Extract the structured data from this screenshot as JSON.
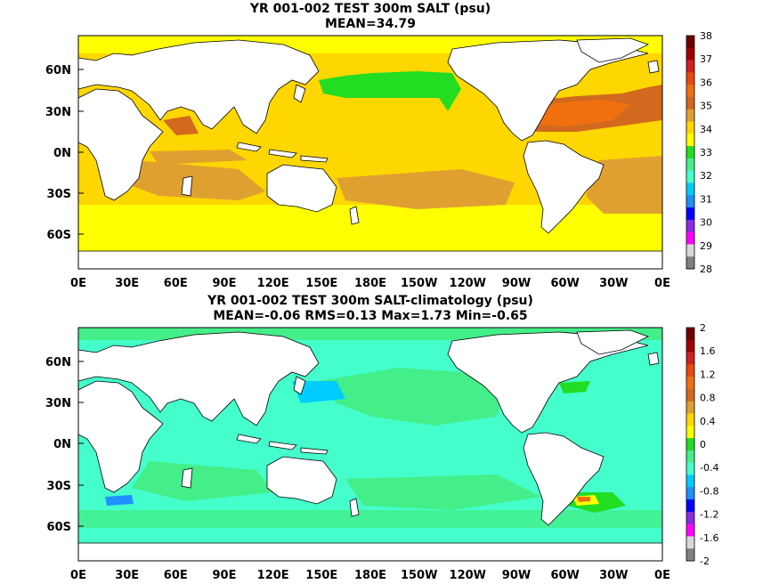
{
  "panels": [
    {
      "title": "YR 001-002 TEST 300m SALT (psu)",
      "subtitle": "MEAN=34.79",
      "colorbar_labels": [
        "38",
        "37",
        "36",
        "35",
        "34",
        "33",
        "32",
        "31",
        "30",
        "29",
        "28"
      ]
    },
    {
      "title": "YR 001-002 TEST 300m SALT-climatology (psu)",
      "subtitle": "MEAN=-0.06   RMS=0.13   Max=1.73   Min=-0.65",
      "colorbar_labels": [
        "2",
        "1.6",
        "1.2",
        "0.8",
        "0.4",
        "0",
        "-0.4",
        "-0.8",
        "-1.2",
        "-1.6",
        "-2"
      ]
    }
  ],
  "lat_labels": [
    "60N",
    "30N",
    "0N",
    "30S",
    "60S"
  ],
  "lon_labels": [
    "0E",
    "30E",
    "60E",
    "90E",
    "120E",
    "150E",
    "180E",
    "150W",
    "120W",
    "90W",
    "60W",
    "30W",
    "0E"
  ],
  "colors": {
    "top_scale": [
      "#6e0000",
      "#a00000",
      "#d02020",
      "#e84a10",
      "#f07010",
      "#d2691e",
      "#e0a030",
      "#ffd700",
      "#ffff00",
      "#22dd22",
      "#44ee88",
      "#44ffcc",
      "#00ccff",
      "#1e90ff",
      "#0000ff",
      "#8a2be2",
      "#ff00ff",
      "#d8d8d8",
      "#808080"
    ],
    "bottom_scale": [
      "#6e0000",
      "#a00000",
      "#d02020",
      "#e84a10",
      "#f07010",
      "#d2691e",
      "#e0a030",
      "#ffd700",
      "#ffff00",
      "#22dd22",
      "#44ee88",
      "#44ffcc",
      "#00ccff",
      "#1e90ff",
      "#0000ff",
      "#8a2be2",
      "#ff00ff",
      "#d8d8d8",
      "#808080"
    ],
    "land": "#ffffff"
  }
}
